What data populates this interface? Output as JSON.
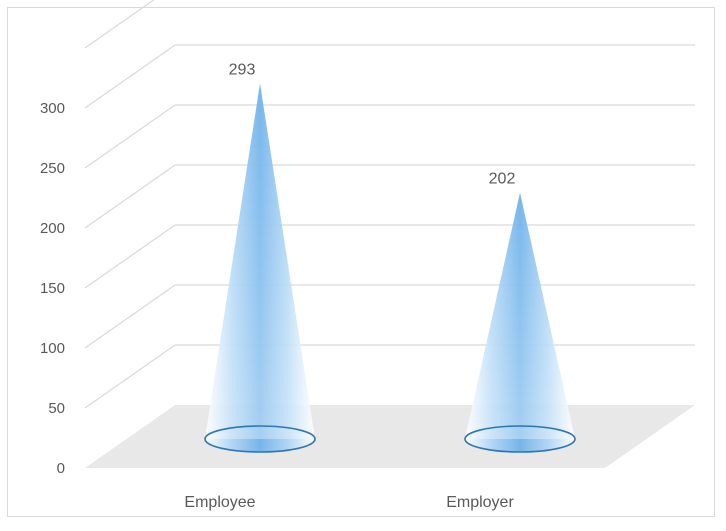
{
  "chart_data": {
    "type": "bar",
    "style": "3d-cone",
    "categories": [
      "Employee",
      "Employer"
    ],
    "values": [
      293,
      202
    ],
    "data_labels": [
      "293",
      "202"
    ],
    "title": "",
    "xlabel": "",
    "ylabel": "",
    "ylim": [
      0,
      300
    ],
    "ytick_labels": [
      "0",
      "50",
      "100",
      "150",
      "200",
      "250",
      "300"
    ],
    "grid": true,
    "legend": "none",
    "colors": {
      "cone": "#8fc3ee",
      "cone_edge": "#2e75b6",
      "gridline": "#d9d9d9",
      "floor": "#e8e8e8",
      "text": "#595959"
    }
  }
}
